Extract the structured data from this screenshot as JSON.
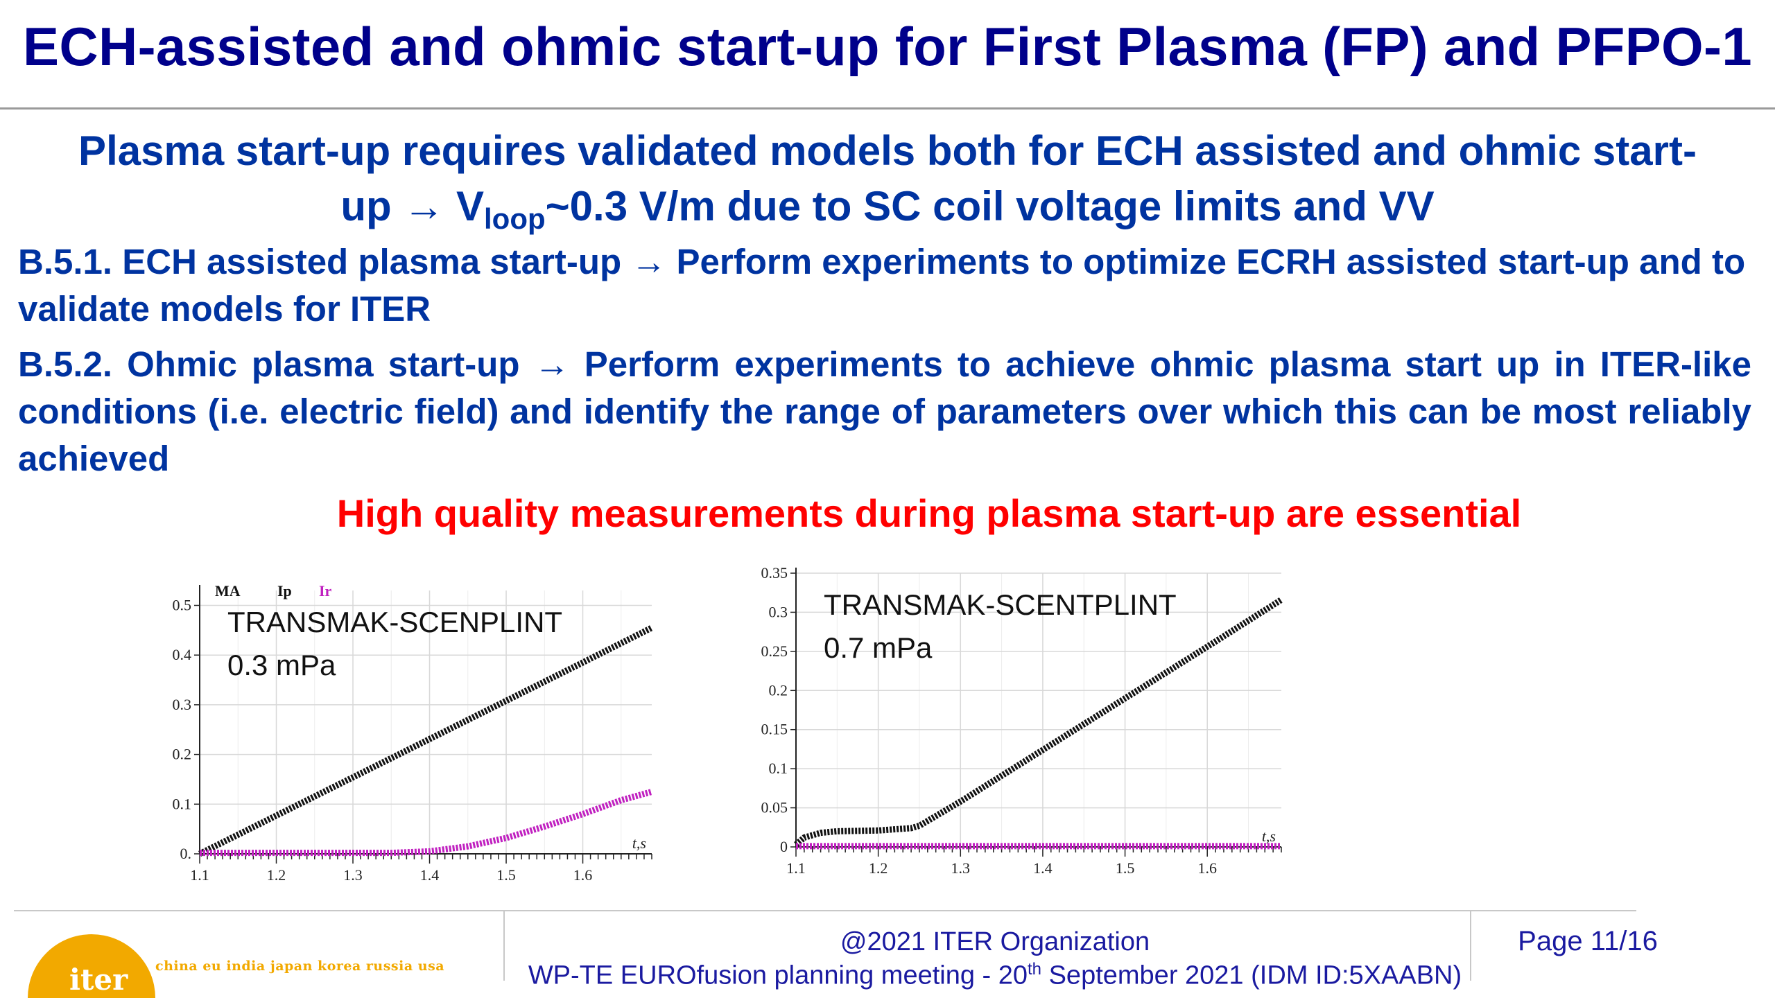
{
  "slide": {
    "title": "ECH-assisted and ohmic start-up for First Plasma (FP) and PFPO-1",
    "lead": {
      "line1": "Plasma start-up requires validated models both for ECH assisted and ohmic start-",
      "line2_pre": "up → V",
      "line2_sub": "loop",
      "line2_post": "~0.3 V/m due to SC coil voltage limits and VV"
    },
    "items": [
      {
        "label": "B.5.1. ECH assisted plasma start-up → Perform experiments to optimize ECRH assisted start-up and to validate models for ITER"
      },
      {
        "label": "B.5.2. Ohmic plasma start-up → Perform experiments to achieve ohmic plasma start up in ITER-like conditions (i.e. electric field) and identify the range of parameters over which this can be most reliably achieved"
      }
    ],
    "highlight": "High quality measurements during plasma start-up are essential"
  },
  "chart_data": [
    {
      "type": "line",
      "annotation": [
        "TRANSMAK-SCENPLINT",
        "0.3 mPa"
      ],
      "unit_label": "MA",
      "xlabel": "t,s",
      "xlim": [
        1.1,
        1.69
      ],
      "ylim": [
        0,
        0.53
      ],
      "x_ticks": [
        "1.1",
        "1.2",
        "1.3",
        "1.4",
        "1.5",
        "1.6"
      ],
      "x_tick_values": [
        1.1,
        1.2,
        1.3,
        1.4,
        1.5,
        1.6
      ],
      "y_ticks": [
        "0.",
        "0.1",
        "0.2",
        "0.3",
        "0.4",
        "0.5"
      ],
      "y_tick_values": [
        0,
        0.1,
        0.2,
        0.3,
        0.4,
        0.5
      ],
      "grid": true,
      "legend": "top-left",
      "series": [
        {
          "name": "Ip",
          "color": "#111111",
          "x": [
            1.1,
            1.2,
            1.3,
            1.4,
            1.5,
            1.6,
            1.69
          ],
          "y": [
            0.0,
            0.077,
            0.154,
            0.231,
            0.308,
            0.385,
            0.455
          ]
        },
        {
          "name": "Ir",
          "color": "#c020c0",
          "x": [
            1.1,
            1.2,
            1.3,
            1.35,
            1.4,
            1.45,
            1.5,
            1.55,
            1.6,
            1.65,
            1.69
          ],
          "y": [
            0.002,
            0.002,
            0.002,
            0.002,
            0.005,
            0.015,
            0.032,
            0.055,
            0.08,
            0.108,
            0.125
          ]
        }
      ]
    },
    {
      "type": "line",
      "annotation": [
        "TRANSMAK-SCENTPLINT",
        "0.7 mPa"
      ],
      "xlabel": "t,s",
      "xlim": [
        1.1,
        1.69
      ],
      "ylim": [
        0,
        0.35
      ],
      "x_ticks": [
        "1.1",
        "1.2",
        "1.3",
        "1.4",
        "1.5",
        "1.6"
      ],
      "x_tick_values": [
        1.1,
        1.2,
        1.3,
        1.4,
        1.5,
        1.6
      ],
      "y_ticks": [
        "0",
        "0.05",
        "0.1",
        "0.15",
        "0.2",
        "0.25",
        "0.3",
        "0.35"
      ],
      "y_tick_values": [
        0,
        0.05,
        0.1,
        0.15,
        0.2,
        0.25,
        0.3,
        0.35
      ],
      "grid": true,
      "series": [
        {
          "color": "#111111",
          "x": [
            1.1,
            1.11,
            1.13,
            1.15,
            1.2,
            1.24,
            1.25,
            1.3,
            1.4,
            1.5,
            1.6,
            1.69
          ],
          "y": [
            0.003,
            0.012,
            0.018,
            0.02,
            0.021,
            0.024,
            0.027,
            0.058,
            0.124,
            0.19,
            0.256,
            0.316
          ]
        },
        {
          "color": "#c020c0",
          "x": [
            1.1,
            1.69
          ],
          "y": [
            0.001,
            0.001
          ]
        }
      ]
    }
  ],
  "footer": {
    "logo_text": "iter",
    "partners": "china eu india japan korea russia usa",
    "copyright": "@2021 ITER Organization",
    "meeting_pre": "WP-TE EUROfusion planning meeting -  20",
    "meeting_sup": "th",
    "meeting_post": " September 2021 (IDM ID:5XAABN)",
    "page": "Page 11/16"
  },
  "colors": {
    "title": "#00008b",
    "body": "#0033a0",
    "highlight": "#ff0000",
    "footer_text": "#1a1aa0",
    "logo": "#f2a900"
  }
}
